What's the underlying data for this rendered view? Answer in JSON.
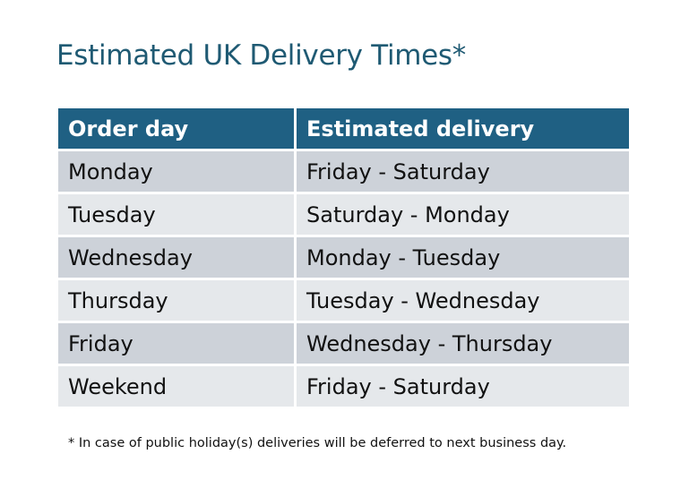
{
  "title": "Estimated UK Delivery Times*",
  "table": {
    "headers": [
      "Order day",
      "Estimated delivery"
    ],
    "rows": [
      [
        "Monday",
        "Friday - Saturday"
      ],
      [
        "Tuesday",
        "Saturday - Monday"
      ],
      [
        "Wednesday",
        "Monday - Tuesday"
      ],
      [
        "Thursday",
        "Tuesday - Wednesday"
      ],
      [
        "Friday",
        "Wednesday - Thursday"
      ],
      [
        "Weekend",
        "Friday - Saturday"
      ]
    ]
  },
  "footnote": "* In case of public holiday(s) deliveries will be deferred to next business day.",
  "colors": {
    "header": "#1f6083",
    "row_odd": "#cdd2d9",
    "row_even": "#e5e8eb",
    "title": "#1f5a73"
  }
}
